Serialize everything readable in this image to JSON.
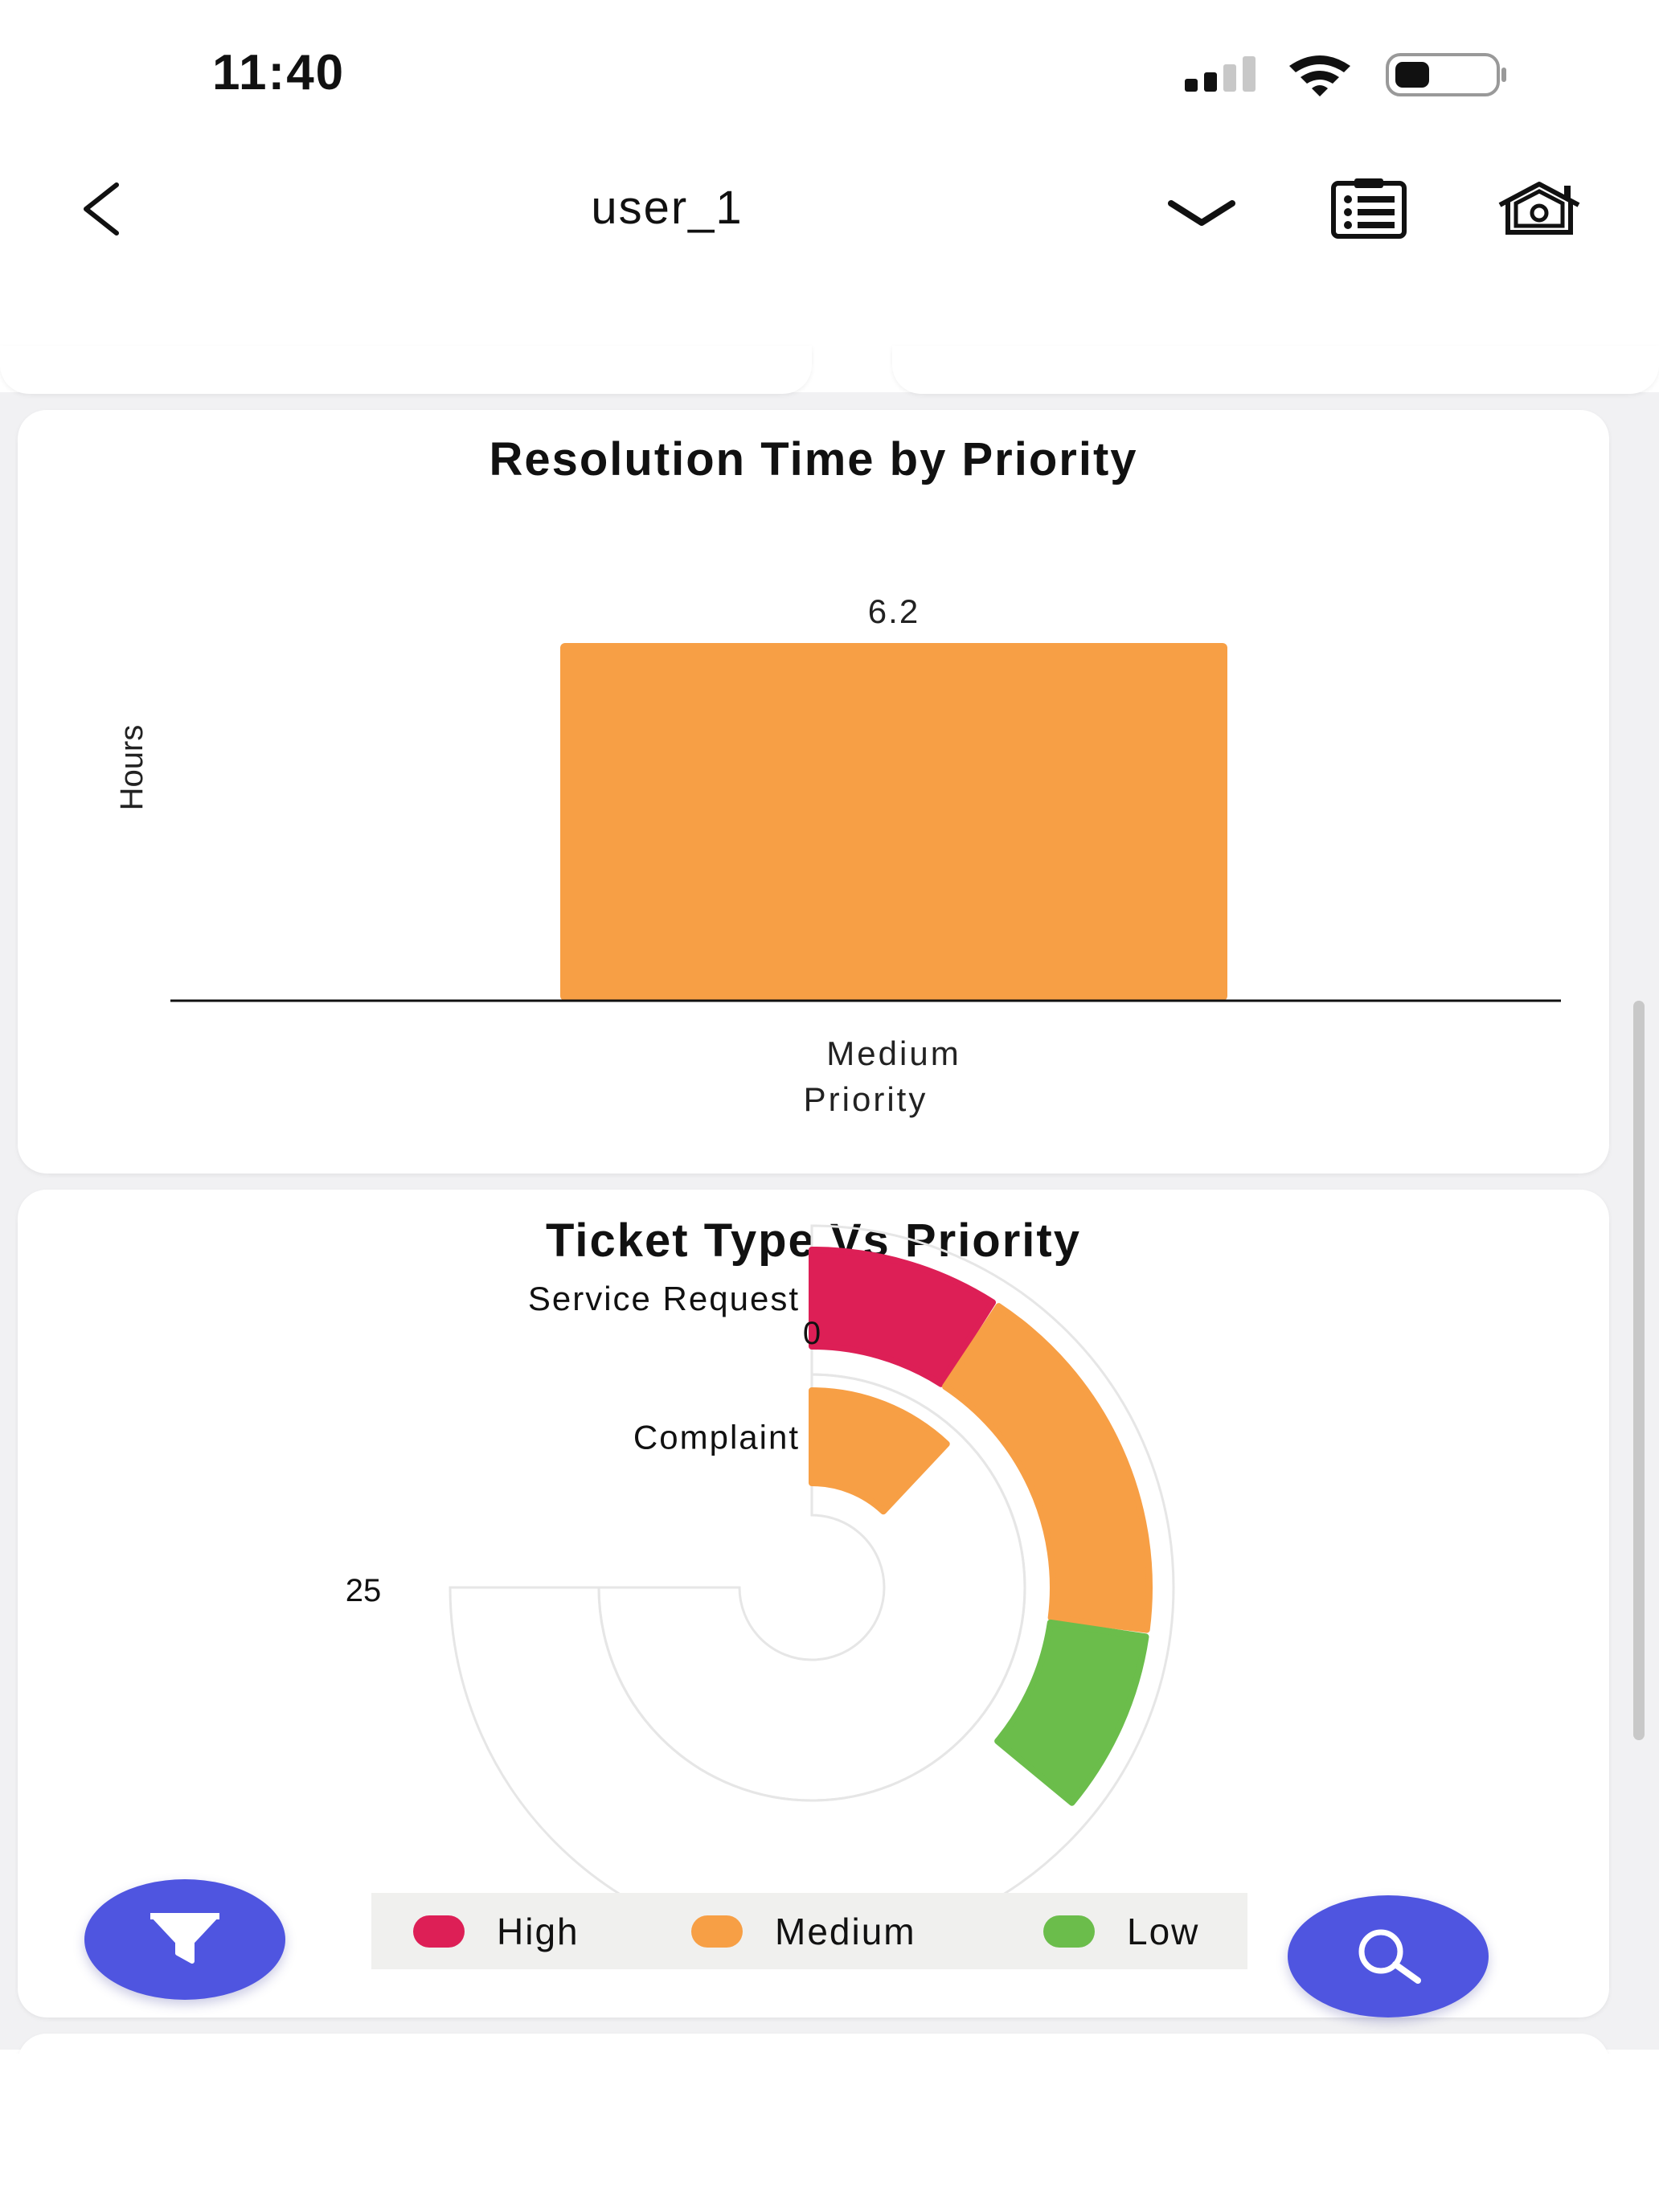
{
  "status_bar": {
    "time": "11:40"
  },
  "nav": {
    "title": "user_1"
  },
  "resolution_card": {
    "title": "Resolution Time by Priority",
    "ylabel": "Hours",
    "xlabel": "Priority",
    "category": "Medium",
    "value_label": "6.2"
  },
  "ticket_card": {
    "title": "Ticket Type Vs Priority",
    "radial_tick_start": "0",
    "radial_tick_end": "25",
    "categories": [
      "Service Request",
      "Complaint"
    ],
    "legend": [
      {
        "label": "High",
        "color": "#dd1f56"
      },
      {
        "label": "Medium",
        "color": "#f79f45"
      },
      {
        "label": "Low",
        "color": "#6bbd4b"
      }
    ]
  },
  "chart_data": [
    {
      "type": "bar",
      "title": "Resolution Time by Priority",
      "categories": [
        "Medium"
      ],
      "values": [
        6.2
      ],
      "xlabel": "Priority",
      "ylabel": "Hours",
      "color": "#f79f45"
    },
    {
      "type": "bar",
      "subtype": "radial-stacked",
      "title": "Ticket Type Vs Priority",
      "categories": [
        "Service Request",
        "Complaint"
      ],
      "axis_range": [
        0,
        25
      ],
      "series": [
        {
          "name": "High",
          "values": [
            3,
            0
          ]
        },
        {
          "name": "Medium",
          "values": [
            6,
            4
          ]
        },
        {
          "name": "Low",
          "values": [
            3,
            0
          ]
        }
      ],
      "legend_position": "bottom"
    }
  ]
}
